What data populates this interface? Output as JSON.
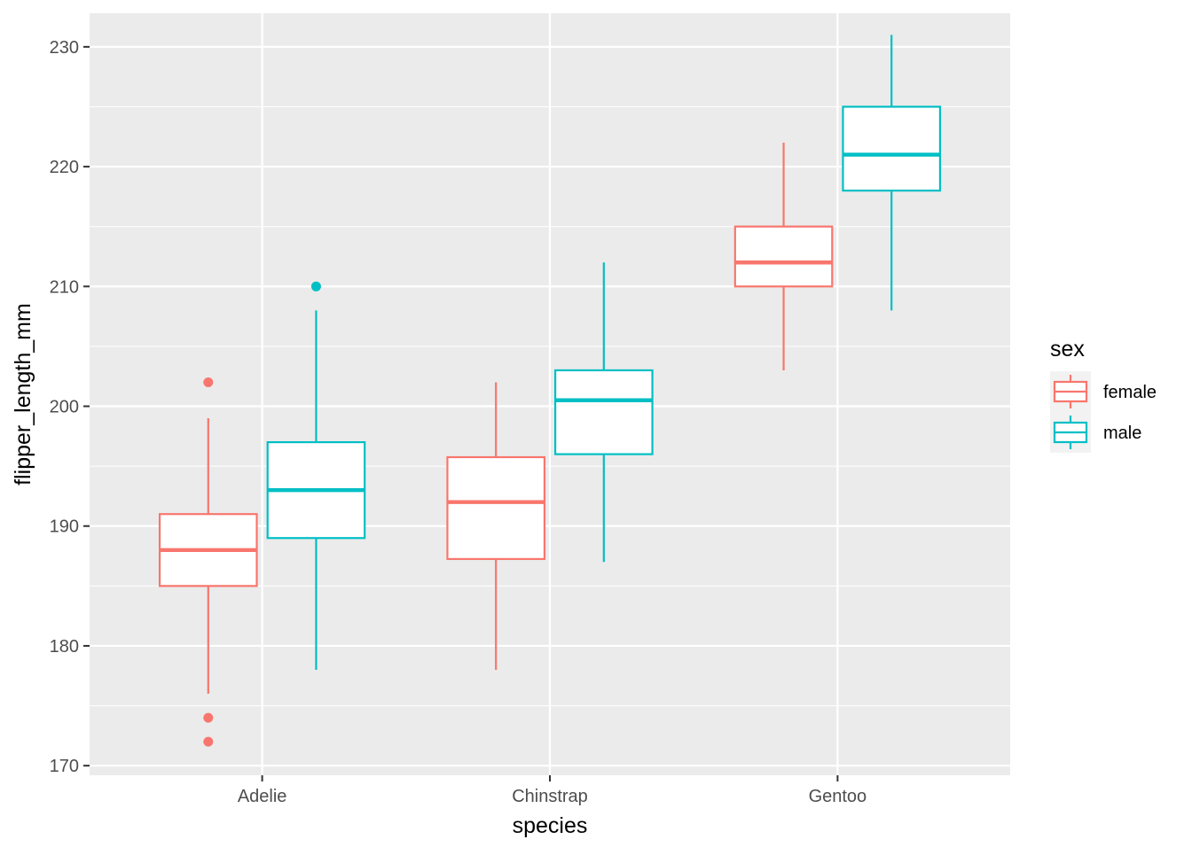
{
  "chart_data": {
    "type": "box",
    "xlabel": "species",
    "ylabel": "flipper_length_mm",
    "ylim": [
      169.2,
      232.8
    ],
    "y_ticks": [
      170,
      180,
      190,
      200,
      210,
      220,
      230
    ],
    "categories": [
      "Adelie",
      "Chinstrap",
      "Gentoo"
    ],
    "grid": true,
    "legend": {
      "title": "sex",
      "position": "right"
    },
    "series": [
      {
        "name": "female",
        "color": "#F8766D",
        "boxes": [
          {
            "category": "Adelie",
            "whisker_low": 176,
            "q1": 185,
            "median": 188,
            "q3": 191,
            "whisker_high": 199,
            "outliers": [
              172,
              174,
              202
            ]
          },
          {
            "category": "Chinstrap",
            "whisker_low": 178,
            "q1": 187.25,
            "median": 192,
            "q3": 195.75,
            "whisker_high": 202,
            "outliers": []
          },
          {
            "category": "Gentoo",
            "whisker_low": 203,
            "q1": 210,
            "median": 212,
            "q3": 215,
            "whisker_high": 222,
            "outliers": []
          }
        ]
      },
      {
        "name": "male",
        "color": "#00BFC4",
        "boxes": [
          {
            "category": "Adelie",
            "whisker_low": 178,
            "q1": 189,
            "median": 193,
            "q3": 197,
            "whisker_high": 208,
            "outliers": [
              210
            ]
          },
          {
            "category": "Chinstrap",
            "whisker_low": 187,
            "q1": 196,
            "median": 200.5,
            "q3": 203,
            "whisker_high": 212,
            "outliers": []
          },
          {
            "category": "Gentoo",
            "whisker_low": 208,
            "q1": 218,
            "median": 221,
            "q3": 225,
            "whisker_high": 231,
            "outliers": []
          }
        ]
      }
    ]
  }
}
